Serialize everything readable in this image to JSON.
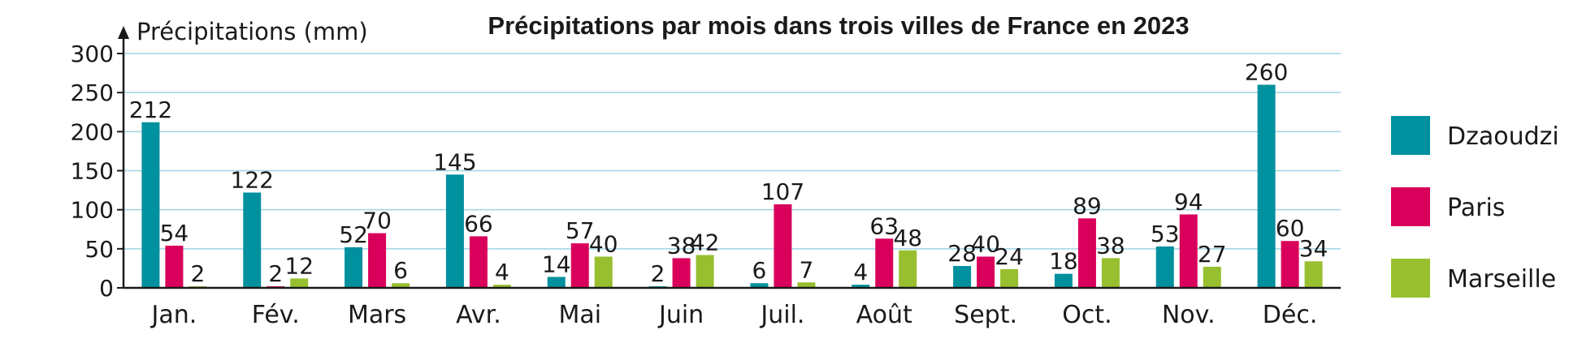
{
  "chart_data": {
    "type": "bar",
    "title": "Précipitations par mois dans trois villes de France en 2023",
    "ylabel": "Précipitations (mm)",
    "xlabel": "",
    "ylim": [
      0,
      300
    ],
    "yticks": [
      0,
      50,
      100,
      150,
      200,
      250,
      300
    ],
    "grid": true,
    "legend_position": "right",
    "categories": [
      "Jan.",
      "Fév.",
      "Mars",
      "Avr.",
      "Mai",
      "Juin",
      "Juil.",
      "Août",
      "Sept.",
      "Oct.",
      "Nov.",
      "Déc."
    ],
    "series": [
      {
        "name": "Dzaoudzi",
        "color": "#00909e",
        "values": [
          212,
          122,
          52,
          145,
          14,
          2,
          6,
          4,
          28,
          18,
          53,
          260
        ]
      },
      {
        "name": "Paris",
        "color": "#d9005b",
        "values": [
          54,
          2,
          70,
          66,
          57,
          38,
          107,
          63,
          40,
          89,
          94,
          60
        ]
      },
      {
        "name": "Marseille",
        "color": "#97bf2f",
        "values": [
          2,
          12,
          6,
          4,
          40,
          42,
          7,
          48,
          24,
          38,
          27,
          34
        ]
      }
    ],
    "colors": {
      "grid": "#9fd4e3",
      "axis": "#1a1a1a"
    }
  }
}
